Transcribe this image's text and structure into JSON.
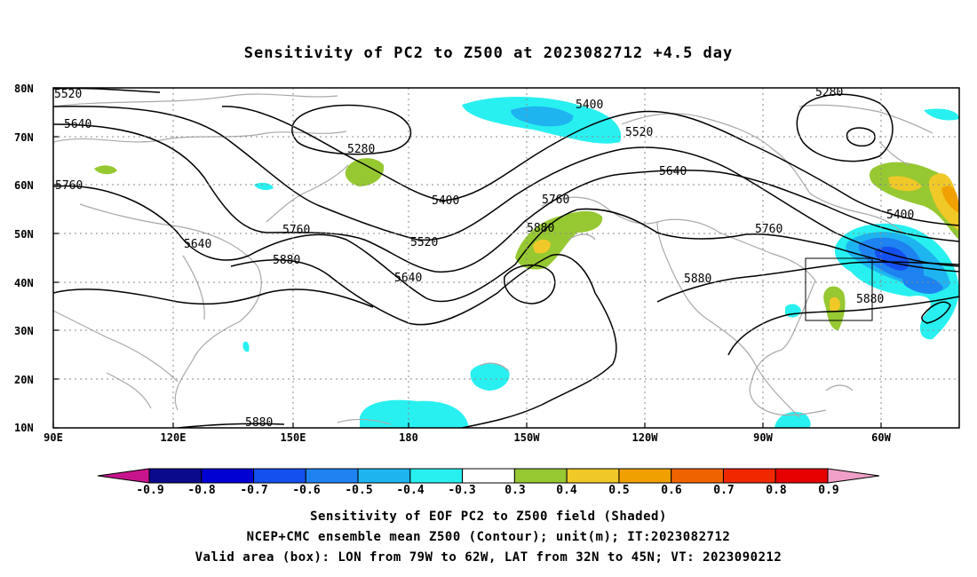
{
  "title": "Sensitivity of PC2 to Z500 at 2023082712 +4.5 day",
  "map": {
    "projection": "cylindrical equidistant",
    "lon_range": [
      "90E",
      "30W"
    ],
    "lat_range": [
      "10N",
      "80N"
    ],
    "x_ticks": [
      "90E",
      "120E",
      "150E",
      "180",
      "150W",
      "120W",
      "90W",
      "60W"
    ],
    "y_ticks": [
      "80N",
      "70N",
      "60N",
      "50N",
      "40N",
      "30N",
      "20N",
      "10N"
    ],
    "grid": "dotted",
    "coastline_color": "#a9a9a9",
    "contour_labels": [
      "5520",
      "5640",
      "5760",
      "5640",
      "5280",
      "5400",
      "5520",
      "5400",
      "5760",
      "5880",
      "5640",
      "5760",
      "5520",
      "5640",
      "5880",
      "5880",
      "5280",
      "5400",
      "5760",
      "5880",
      "5880"
    ],
    "valid_box": {
      "lon": [
        "79W",
        "62W"
      ],
      "lat": [
        "32N",
        "45N"
      ]
    }
  },
  "colorbar": {
    "labels": [
      "-0.9",
      "-0.8",
      "-0.7",
      "-0.6",
      "-0.5",
      "-0.4",
      "-0.3",
      "0.3",
      "0.4",
      "0.5",
      "0.6",
      "0.7",
      "0.8",
      "0.9"
    ],
    "colors": [
      "#0a0a8c",
      "#0000d2",
      "#1450f0",
      "#1e82f0",
      "#1eb4f0",
      "#28f0f0",
      "#ffffff",
      "#96c832",
      "#f0c828",
      "#f0a000",
      "#f06400",
      "#f02800",
      "#e60000"
    ],
    "low_end": "#c8148c",
    "high_end": "#f0a0c8"
  },
  "footer": [
    "Sensitivity of EOF PC2 to Z500 field (Shaded)",
    "NCEP+CMC ensemble mean Z500 (Contour); unit(m); IT:2023082712",
    "Valid area (box): LON from 79W to 62W, LAT from 32N to 45N; VT: 2023090212"
  ]
}
